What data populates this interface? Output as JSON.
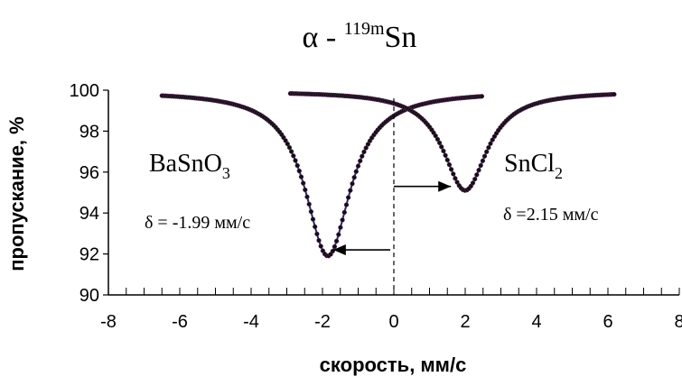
{
  "chart_data": {
    "type": "scatter",
    "title": {
      "prefix": "α - ",
      "superscript": "119m",
      "element": "Sn"
    },
    "xlabel": "скорость, мм/с",
    "ylabel": "пропускание, %",
    "xlim": [
      -8,
      8
    ],
    "ylim": [
      90,
      100
    ],
    "x_ticks": [
      -8,
      -6,
      -4,
      -2,
      0,
      2,
      4,
      6,
      8
    ],
    "y_ticks": [
      90,
      92,
      94,
      96,
      98,
      100
    ],
    "grid": false,
    "series": [
      {
        "name": "BaSnO3",
        "label_main": "BaSnO",
        "label_sub": "3",
        "delta_label": "δ = -1.99 мм/с",
        "x_range": [
          -6.5,
          2.5
        ],
        "baseline": 99.95,
        "center": -1.85,
        "depth": 8.05,
        "width": 1.55,
        "color": "#1f2a6b"
      },
      {
        "name": "SnCl2",
        "label_main": "SnCl",
        "label_sub": "2",
        "delta_label": "δ =2.15 мм/с",
        "x_range": [
          -2.9,
          6.2
        ],
        "baseline": 99.95,
        "center": 2.0,
        "depth": 4.85,
        "width": 1.5,
        "color": "#2a2a6a"
      }
    ],
    "annotations": {
      "dashed_line_x": 0,
      "arrow_left": {
        "from": [
          -0.1,
          92.2
        ],
        "to": [
          -1.7,
          92.2
        ]
      },
      "arrow_right": {
        "from": [
          0.0,
          95.3
        ],
        "to": [
          1.6,
          95.3
        ]
      }
    }
  }
}
